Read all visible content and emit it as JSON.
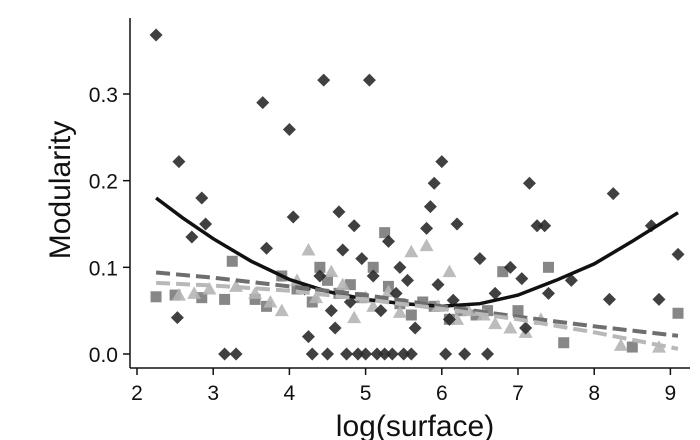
{
  "chart_data": {
    "type": "scatter",
    "xlabel": "log(surface)",
    "ylabel": "Modularity",
    "xlim": [
      2,
      9.3
    ],
    "ylim": [
      -0.015,
      0.39
    ],
    "xticks": [
      "2",
      "3",
      "4",
      "5",
      "6",
      "7",
      "8",
      "9"
    ],
    "yticks": [
      "0.0",
      "0.1",
      "0.2",
      "0.3"
    ],
    "grid": false,
    "legend": "none",
    "series": [
      {
        "marker": "diamond",
        "color": "#2b2b2b",
        "points": [
          [
            2.25,
            0.368
          ],
          [
            2.55,
            0.222
          ],
          [
            2.53,
            0.042
          ],
          [
            2.72,
            0.135
          ],
          [
            2.85,
            0.18
          ],
          [
            2.9,
            0.15
          ],
          [
            3.15,
            0.0
          ],
          [
            3.3,
            0.0
          ],
          [
            3.65,
            0.29
          ],
          [
            3.7,
            0.122
          ],
          [
            4.0,
            0.259
          ],
          [
            4.05,
            0.158
          ],
          [
            4.2,
            0.075
          ],
          [
            4.25,
            0.02
          ],
          [
            4.3,
            0.0
          ],
          [
            4.4,
            0.09
          ],
          [
            4.45,
            0.316
          ],
          [
            4.5,
            0.0
          ],
          [
            4.55,
            0.05
          ],
          [
            4.6,
            0.03
          ],
          [
            4.65,
            0.164
          ],
          [
            4.7,
            0.12
          ],
          [
            4.75,
            0.0
          ],
          [
            4.8,
            0.06
          ],
          [
            4.85,
            0.148
          ],
          [
            4.9,
            0.0
          ],
          [
            4.95,
            0.11
          ],
          [
            5.0,
            0.0
          ],
          [
            5.05,
            0.316
          ],
          [
            5.1,
            0.09
          ],
          [
            5.15,
            0.0
          ],
          [
            5.2,
            0.05
          ],
          [
            5.25,
            0.0
          ],
          [
            5.3,
            0.13
          ],
          [
            5.35,
            0.0
          ],
          [
            5.4,
            0.07
          ],
          [
            5.45,
            0.1
          ],
          [
            5.5,
            0.0
          ],
          [
            5.55,
            0.085
          ],
          [
            5.6,
            0.0
          ],
          [
            5.65,
            0.03
          ],
          [
            5.8,
            0.145
          ],
          [
            5.85,
            0.17
          ],
          [
            5.9,
            0.197
          ],
          [
            5.95,
            0.08
          ],
          [
            6.0,
            0.222
          ],
          [
            6.05,
            0.0
          ],
          [
            6.1,
            0.04
          ],
          [
            6.15,
            0.062
          ],
          [
            6.2,
            0.15
          ],
          [
            6.3,
            0.0
          ],
          [
            6.5,
            0.11
          ],
          [
            6.6,
            0.0
          ],
          [
            6.7,
            0.07
          ],
          [
            6.9,
            0.1
          ],
          [
            7.05,
            0.087
          ],
          [
            7.1,
            0.03
          ],
          [
            7.15,
            0.197
          ],
          [
            7.25,
            0.148
          ],
          [
            7.35,
            0.148
          ],
          [
            7.4,
            0.07
          ],
          [
            7.7,
            0.085
          ],
          [
            8.2,
            0.063
          ],
          [
            8.25,
            0.185
          ],
          [
            8.75,
            0.148
          ],
          [
            8.85,
            0.063
          ],
          [
            9.1,
            0.115
          ]
        ]
      },
      {
        "marker": "square",
        "color": "#7a7a7a",
        "points": [
          [
            2.25,
            0.066
          ],
          [
            2.5,
            0.068
          ],
          [
            2.85,
            0.065
          ],
          [
            3.15,
            0.063
          ],
          [
            3.25,
            0.107
          ],
          [
            3.55,
            0.063
          ],
          [
            3.7,
            0.055
          ],
          [
            3.9,
            0.09
          ],
          [
            4.1,
            0.075
          ],
          [
            4.3,
            0.06
          ],
          [
            4.4,
            0.1
          ],
          [
            4.5,
            0.085
          ],
          [
            4.65,
            0.07
          ],
          [
            4.8,
            0.08
          ],
          [
            4.95,
            0.065
          ],
          [
            5.1,
            0.1
          ],
          [
            5.25,
            0.14
          ],
          [
            5.3,
            0.078
          ],
          [
            5.45,
            0.058
          ],
          [
            5.6,
            0.045
          ],
          [
            5.75,
            0.06
          ],
          [
            5.9,
            0.055
          ],
          [
            6.1,
            0.04
          ],
          [
            6.25,
            0.05
          ],
          [
            6.45,
            0.045
          ],
          [
            6.6,
            0.05
          ],
          [
            6.8,
            0.095
          ],
          [
            7.0,
            0.05
          ],
          [
            7.4,
            0.1
          ],
          [
            7.6,
            0.013
          ],
          [
            8.5,
            0.008
          ],
          [
            9.1,
            0.047
          ]
        ]
      },
      {
        "marker": "triangle",
        "color": "#b5b5b5",
        "points": [
          [
            2.55,
            0.068
          ],
          [
            2.75,
            0.07
          ],
          [
            2.95,
            0.075
          ],
          [
            3.3,
            0.078
          ],
          [
            3.55,
            0.07
          ],
          [
            3.75,
            0.06
          ],
          [
            3.9,
            0.05
          ],
          [
            4.1,
            0.085
          ],
          [
            4.25,
            0.12
          ],
          [
            4.35,
            0.065
          ],
          [
            4.55,
            0.095
          ],
          [
            4.7,
            0.08
          ],
          [
            4.85,
            0.042
          ],
          [
            5.0,
            0.065
          ],
          [
            5.1,
            0.055
          ],
          [
            5.3,
            0.072
          ],
          [
            5.45,
            0.048
          ],
          [
            5.6,
            0.118
          ],
          [
            5.8,
            0.125
          ],
          [
            5.95,
            0.055
          ],
          [
            6.1,
            0.095
          ],
          [
            6.2,
            0.04
          ],
          [
            6.35,
            0.05
          ],
          [
            6.55,
            0.045
          ],
          [
            6.7,
            0.035
          ],
          [
            6.9,
            0.03
          ],
          [
            7.1,
            0.025
          ],
          [
            7.3,
            0.04
          ],
          [
            8.35,
            0.01
          ],
          [
            8.85,
            0.008
          ]
        ]
      }
    ],
    "fits": [
      {
        "style": "solid",
        "color": "#111111",
        "points": [
          [
            2.25,
            0.18
          ],
          [
            2.6,
            0.157
          ],
          [
            3.0,
            0.133
          ],
          [
            3.5,
            0.107
          ],
          [
            4.0,
            0.086
          ],
          [
            4.5,
            0.072
          ],
          [
            5.0,
            0.063
          ],
          [
            5.5,
            0.058
          ],
          [
            6.0,
            0.055
          ],
          [
            6.5,
            0.058
          ],
          [
            7.0,
            0.068
          ],
          [
            7.5,
            0.085
          ],
          [
            8.0,
            0.104
          ],
          [
            8.5,
            0.13
          ],
          [
            9.1,
            0.163
          ]
        ]
      },
      {
        "style": "dashed",
        "color": "#6e6e6e",
        "points": [
          [
            2.25,
            0.094
          ],
          [
            3.0,
            0.088
          ],
          [
            4.0,
            0.078
          ],
          [
            5.0,
            0.068
          ],
          [
            6.0,
            0.055
          ],
          [
            7.0,
            0.043
          ],
          [
            8.0,
            0.032
          ],
          [
            9.1,
            0.021
          ]
        ]
      },
      {
        "style": "dashed",
        "color": "#b8b8b8",
        "points": [
          [
            2.25,
            0.082
          ],
          [
            3.0,
            0.079
          ],
          [
            4.0,
            0.073
          ],
          [
            5.0,
            0.063
          ],
          [
            6.0,
            0.052
          ],
          [
            7.0,
            0.04
          ],
          [
            8.0,
            0.025
          ],
          [
            9.1,
            0.006
          ]
        ]
      }
    ]
  }
}
